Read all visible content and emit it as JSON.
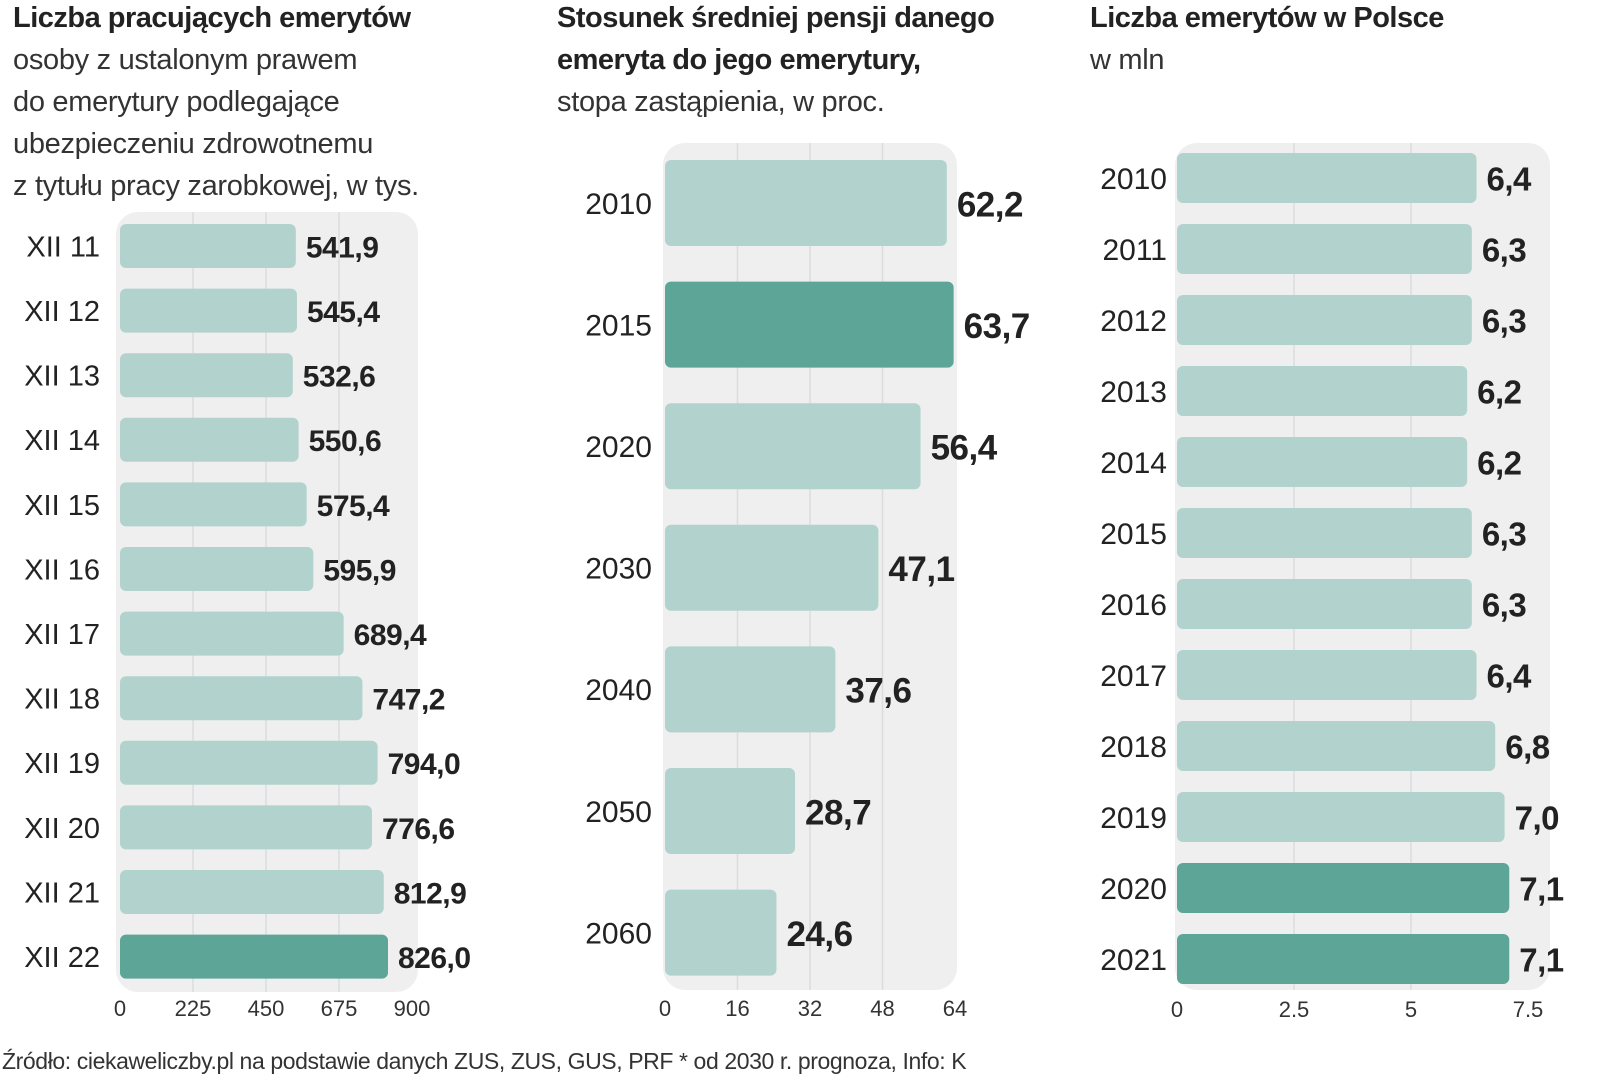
{
  "colors": {
    "bar_light": "#b2d3cd",
    "bar_dark": "#5ca597",
    "panel_bg": "#efefef",
    "gridline": "#d9dde0",
    "text": "#222222"
  },
  "chart_data": [
    {
      "type": "bar",
      "orientation": "horizontal",
      "title": "Liczba pracujących emerytów",
      "subtitle_lines": [
        "osoby z ustalonym prawem",
        "do emerytury podlegające",
        "ubezpieczeniu zdrowotnemu",
        "z tytułu pracy zarobkowej, w tys."
      ],
      "categories": [
        "XII 11",
        "XII 12",
        "XII 13",
        "XII 14",
        "XII 15",
        "XII 16",
        "XII 17",
        "XII 18",
        "XII 19",
        "XII 20",
        "XII 21",
        "XII 22"
      ],
      "values": [
        541.9,
        545.4,
        532.6,
        550.6,
        575.4,
        595.9,
        689.4,
        747.2,
        794.0,
        776.6,
        812.9,
        826.0
      ],
      "value_labels": [
        "541,9",
        "545,4",
        "532,6",
        "550,6",
        "575,4",
        "595,9",
        "689,4",
        "747,2",
        "794,0",
        "776,6",
        "812,9",
        "826,0"
      ],
      "highlighted": [
        false,
        false,
        false,
        false,
        false,
        false,
        false,
        false,
        false,
        false,
        false,
        true
      ],
      "xticks": [
        0,
        225,
        450,
        675,
        900
      ],
      "xtick_labels": [
        "0",
        "225",
        "450",
        "675",
        "900"
      ],
      "xlim": [
        0,
        900
      ],
      "grid": true
    },
    {
      "type": "bar",
      "orientation": "horizontal",
      "title_lines": [
        "Stosunek średniej pensji danego",
        "emeryta do jego emerytury,"
      ],
      "subtitle_lines": [
        "stopa zastąpienia, w proc."
      ],
      "categories": [
        "2010",
        "2015",
        "2020",
        "2030",
        "2040",
        "2050",
        "2060"
      ],
      "values": [
        62.2,
        63.7,
        56.4,
        47.1,
        37.6,
        28.7,
        24.6
      ],
      "value_labels": [
        "62,2",
        "63,7",
        "56,4",
        "47,1",
        "37,6",
        "28,7",
        "24,6"
      ],
      "highlighted": [
        false,
        true,
        false,
        false,
        false,
        false,
        false
      ],
      "xticks": [
        0,
        16,
        32,
        48,
        64
      ],
      "xtick_labels": [
        "0",
        "16",
        "32",
        "48",
        "64"
      ],
      "xlim": [
        0,
        64
      ],
      "grid": true
    },
    {
      "type": "bar",
      "orientation": "horizontal",
      "title": "Liczba emerytów w Polsce",
      "subtitle_lines": [
        "w mln"
      ],
      "categories": [
        "2010",
        "2011",
        "2012",
        "2013",
        "2014",
        "2015",
        "2016",
        "2017",
        "2018",
        "2019",
        "2020",
        "2021"
      ],
      "values": [
        6.4,
        6.3,
        6.3,
        6.2,
        6.2,
        6.3,
        6.3,
        6.4,
        6.8,
        7.0,
        7.1,
        7.1
      ],
      "value_labels": [
        "6,4",
        "6,3",
        "6,3",
        "6,2",
        "6,2",
        "6,3",
        "6,3",
        "6,4",
        "6,8",
        "7,0",
        "7,1",
        "7,1"
      ],
      "highlighted": [
        false,
        false,
        false,
        false,
        false,
        false,
        false,
        false,
        false,
        false,
        true,
        true
      ],
      "xticks": [
        0,
        2.5,
        5,
        7.5
      ],
      "xtick_labels": [
        "0",
        "2.5",
        "5",
        "7.5"
      ],
      "xlim": [
        0,
        7.5
      ],
      "grid": true
    }
  ],
  "footer": {
    "source": "Źródło: ciekaweliczby.pl na podstawie danych ZUS, ZUS, GUS, PRF  * od 2030 r. prognoza, Info: K"
  }
}
